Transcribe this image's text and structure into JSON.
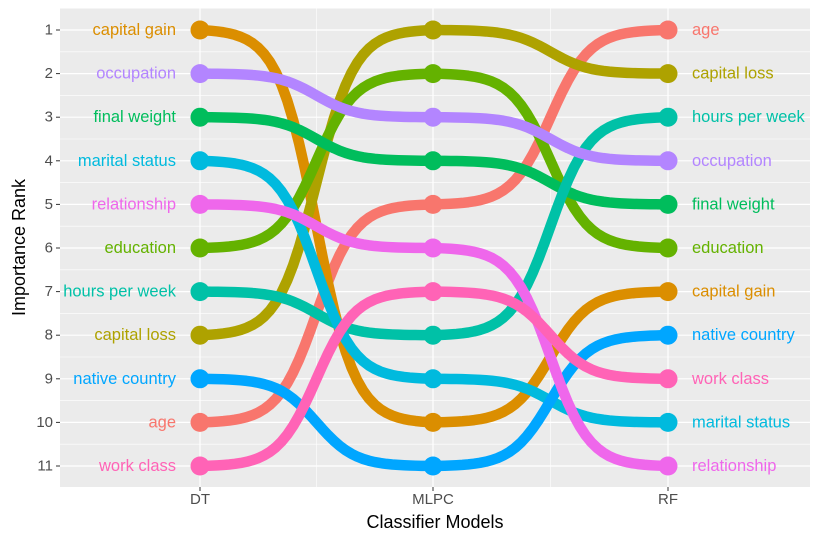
{
  "chart_data": {
    "type": "line",
    "subtype": "bump",
    "xlabel": "Classifier Models",
    "ylabel": "Importance Rank",
    "categories": [
      "DT",
      "MLPC",
      "RF"
    ],
    "y_ticks": [
      "1",
      "2",
      "3",
      "4",
      "5",
      "6",
      "7",
      "8",
      "9",
      "10",
      "11"
    ],
    "y_reversed": true,
    "ylim": [
      0.3,
      11.5
    ],
    "grid": true,
    "legend": "none",
    "series": [
      {
        "name": "age",
        "ranks": [
          10,
          5,
          1
        ],
        "color": "#F8766D"
      },
      {
        "name": "capital gain",
        "ranks": [
          1,
          10,
          7
        ],
        "color": "#DB8E00"
      },
      {
        "name": "capital loss",
        "ranks": [
          8,
          1,
          2
        ],
        "color": "#AEA200"
      },
      {
        "name": "education",
        "ranks": [
          6,
          2,
          6
        ],
        "color": "#64B200"
      },
      {
        "name": "final weight",
        "ranks": [
          3,
          4,
          5
        ],
        "color": "#00BD5C"
      },
      {
        "name": "hours per week",
        "ranks": [
          7,
          8,
          3
        ],
        "color": "#00C1A7"
      },
      {
        "name": "marital status",
        "ranks": [
          4,
          9,
          10
        ],
        "color": "#00BADE"
      },
      {
        "name": "native country",
        "ranks": [
          9,
          11,
          8
        ],
        "color": "#00A6FF"
      },
      {
        "name": "occupation",
        "ranks": [
          2,
          3,
          4
        ],
        "color": "#B385FF"
      },
      {
        "name": "relationship",
        "ranks": [
          5,
          6,
          11
        ],
        "color": "#EF67EB"
      },
      {
        "name": "work class",
        "ranks": [
          11,
          7,
          9
        ],
        "color": "#FF63B6"
      }
    ]
  }
}
